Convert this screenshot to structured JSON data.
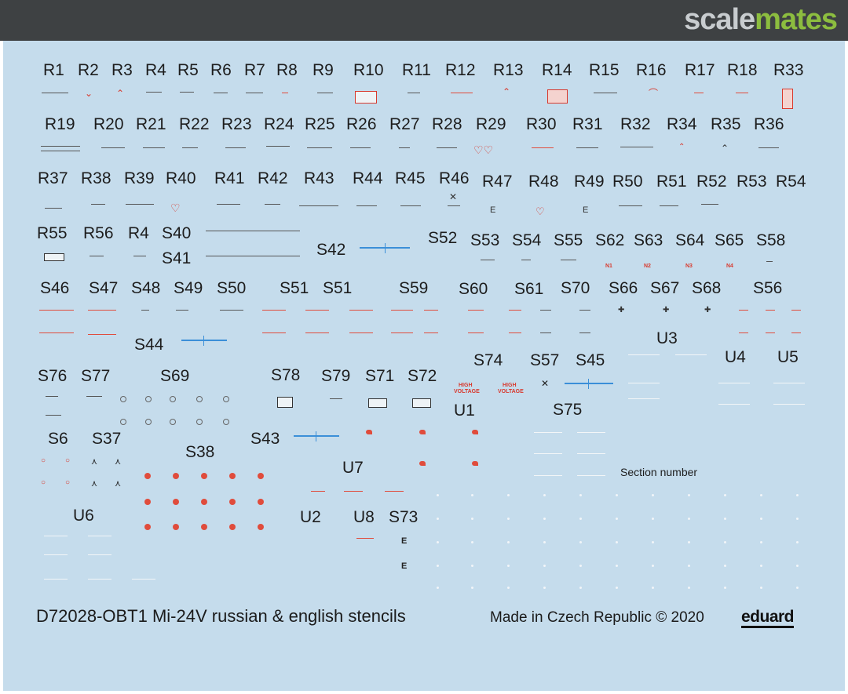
{
  "header": {
    "logo_part1": "scale",
    "logo_part2": "mates"
  },
  "colors": {
    "sheet": "#c5dcec",
    "red_stencil": "#e04c3c",
    "blue_stencil": "#3b8fd8",
    "header": "#3e4143",
    "logo_green": "#8cbd3f"
  },
  "labels": [
    "R1",
    "R2",
    "R3",
    "R4",
    "R5",
    "R6",
    "R7",
    "R8",
    "R9",
    "R10",
    "R11",
    "R12",
    "R13",
    "R14",
    "R15",
    "R16",
    "R17",
    "R18",
    "R33",
    "R19",
    "R20",
    "R21",
    "R22",
    "R23",
    "R24",
    "R25",
    "R26",
    "R27",
    "R28",
    "R29",
    "R30",
    "R31",
    "R32",
    "R34",
    "R35",
    "R36",
    "R37",
    "R38",
    "R39",
    "R40",
    "R41",
    "R42",
    "R43",
    "R44",
    "R45",
    "R46",
    "R47",
    "R48",
    "R49",
    "R50",
    "R51",
    "R52",
    "R53",
    "R54",
    "R55",
    "R56",
    "R4",
    "S40",
    "S41",
    "S42",
    "S52",
    "S53",
    "S54",
    "S55",
    "S62",
    "S63",
    "S64",
    "S65",
    "S58",
    "S46",
    "S47",
    "S48",
    "S49",
    "S50",
    "S51",
    "S51",
    "S59",
    "S60",
    "S61",
    "S70",
    "S66",
    "S67",
    "S68",
    "S56",
    "S44",
    "U3",
    "U4",
    "U5",
    "S76",
    "S77",
    "S69",
    "S78",
    "S79",
    "S71",
    "S72",
    "S74",
    "S57",
    "S45",
    "U1",
    "S75",
    "S6",
    "S37",
    "S38",
    "S43",
    "U7",
    "Section number",
    "U6",
    "U2",
    "U8",
    "S73"
  ],
  "stencils": {
    "high_voltage_line1": "HIGH",
    "high_voltage_line2": "VOLTAGE",
    "n_marks": [
      "N1",
      "N2",
      "N3",
      "N4"
    ]
  },
  "footer": {
    "code": "D72028-OBT1 Mi-24V russian & english stencils",
    "made": "Made in Czech Republic © 2020",
    "brand": "eduard"
  }
}
